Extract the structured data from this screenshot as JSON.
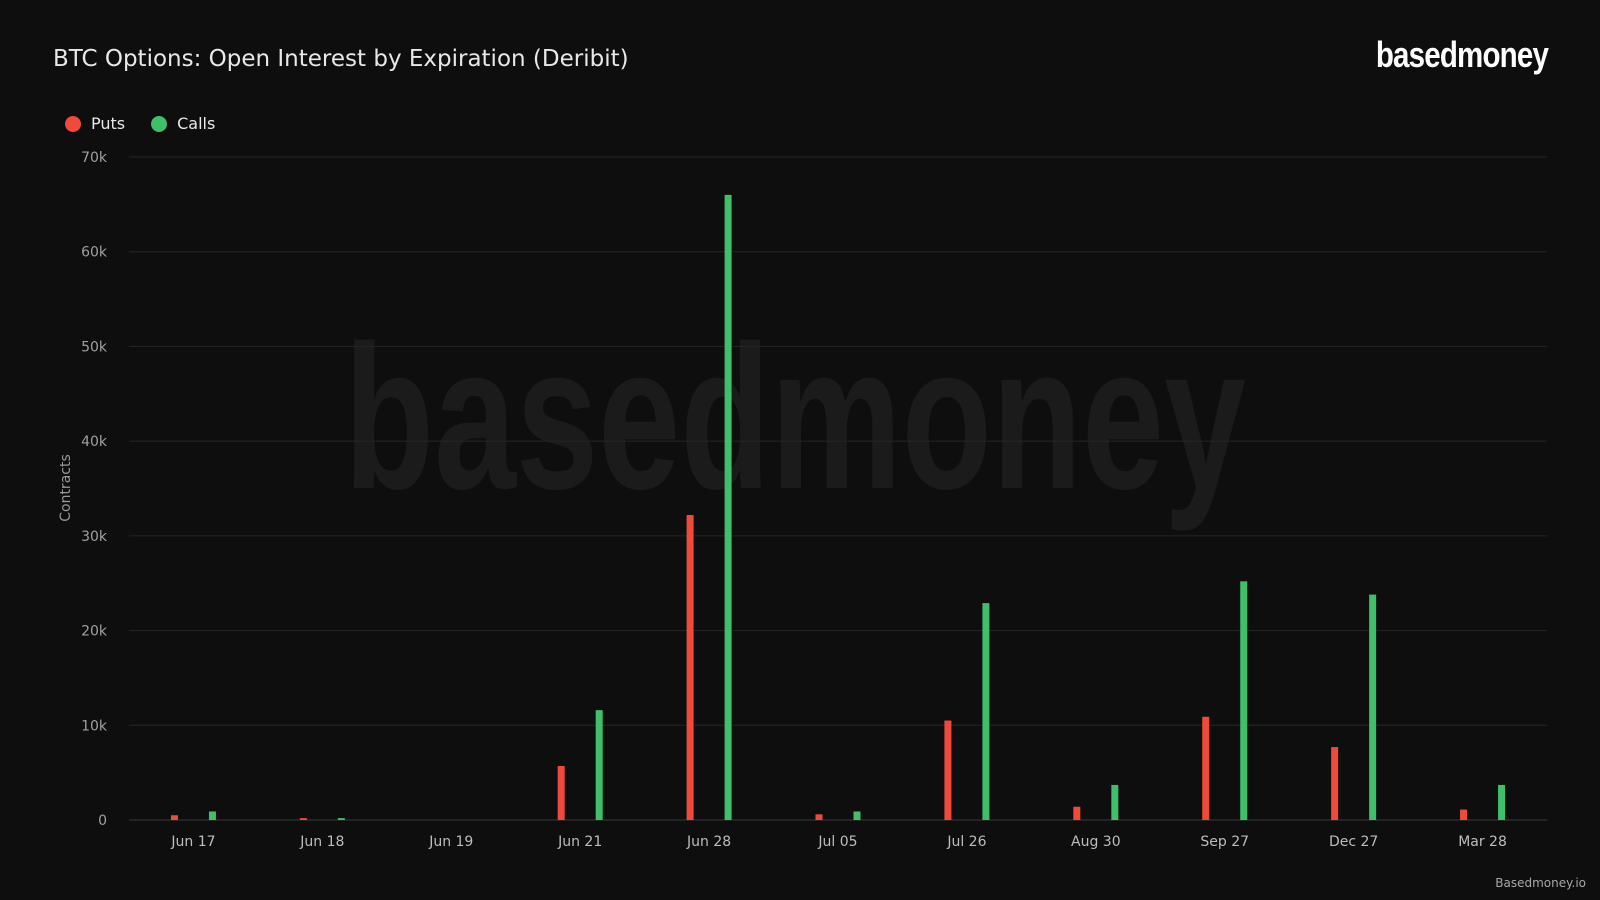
{
  "title": "BTC Options: Open Interest by Expiration (Deribit)",
  "brand": "basedmoney",
  "watermark": "basedmoney",
  "footer": "Basedmoney.io",
  "colors": {
    "background": "#0e0e0e",
    "puts": "#f04a3c",
    "calls": "#3fbf6a",
    "grid": "#262626",
    "tick_text": "#a0a0a0"
  },
  "legend": {
    "position": "top-left",
    "items": [
      {
        "label": "Puts",
        "color": "#f04a3c"
      },
      {
        "label": "Calls",
        "color": "#3fbf6a"
      }
    ]
  },
  "chart_data": {
    "type": "bar",
    "title": "BTC Options: Open Interest by Expiration (Deribit)",
    "xlabel": "",
    "ylabel": "Contracts",
    "categories": [
      "Jun 17",
      "Jun 18",
      "Jun 19",
      "Jun 21",
      "Jun 28",
      "Jul 05",
      "Jul 26",
      "Aug 30",
      "Sep 27",
      "Dec 27",
      "Mar 28"
    ],
    "series": [
      {
        "name": "Puts",
        "color": "#f04a3c",
        "values": [
          500,
          200,
          0,
          5700,
          32200,
          600,
          10500,
          1400,
          10900,
          7700,
          1100
        ]
      },
      {
        "name": "Calls",
        "color": "#3fbf6a",
        "values": [
          900,
          200,
          0,
          11600,
          66000,
          900,
          22900,
          3700,
          25200,
          23800,
          3700
        ]
      }
    ],
    "ylim": [
      0,
      70000
    ],
    "yticks": [
      0,
      10000,
      20000,
      30000,
      40000,
      50000,
      60000,
      70000
    ],
    "ytick_labels": [
      "0",
      "10k",
      "20k",
      "30k",
      "40k",
      "50k",
      "60k",
      "70k"
    ],
    "grid": true
  }
}
